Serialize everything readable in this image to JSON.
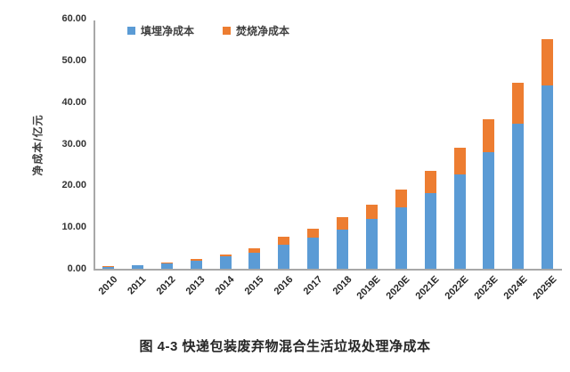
{
  "figure": {
    "caption": "图 4-3 快递包装废弃物混合生活垃圾处理净成本"
  },
  "chart_data": {
    "type": "bar",
    "stacked": true,
    "title": "",
    "xlabel": "",
    "ylabel": "净成本/亿元",
    "ylim": [
      0,
      60
    ],
    "ytick_step": 10,
    "ytick_labels": [
      "0.00",
      "10.00",
      "20.00",
      "30.00",
      "40.00",
      "50.00",
      "60.00"
    ],
    "grid": false,
    "legend_position": "top-left-inside",
    "categories": [
      "2010",
      "2011",
      "2012",
      "2013",
      "2014",
      "2015",
      "2016",
      "2017",
      "2018",
      "2019E",
      "2020E",
      "2021E",
      "2022E",
      "2023E",
      "2024E",
      "2025E"
    ],
    "series": [
      {
        "name": "填埋净成本",
        "color": "#5B9BD5",
        "values": [
          0.5,
          0.8,
          1.3,
          2.0,
          2.9,
          3.9,
          5.7,
          7.5,
          9.4,
          11.9,
          14.7,
          18.1,
          22.6,
          28.0,
          34.8,
          43.9
        ]
      },
      {
        "name": "焚烧净成本",
        "color": "#ED7D31",
        "values": [
          0.1,
          0.15,
          0.2,
          0.3,
          0.6,
          1.1,
          1.9,
          2.2,
          2.9,
          3.5,
          4.3,
          5.4,
          6.5,
          7.9,
          9.8,
          11.3
        ]
      }
    ],
    "totals": [
      0.6,
      0.95,
      1.5,
      2.3,
      3.5,
      5.0,
      7.6,
      9.7,
      12.3,
      15.4,
      19.0,
      23.5,
      29.1,
      35.9,
      44.6,
      55.2
    ]
  },
  "colors": {
    "landfill_blue": "#5B9BD5",
    "incineration_orange": "#ED7D31",
    "axis_line": "#a8a8a8",
    "text_dark": "#262626"
  }
}
